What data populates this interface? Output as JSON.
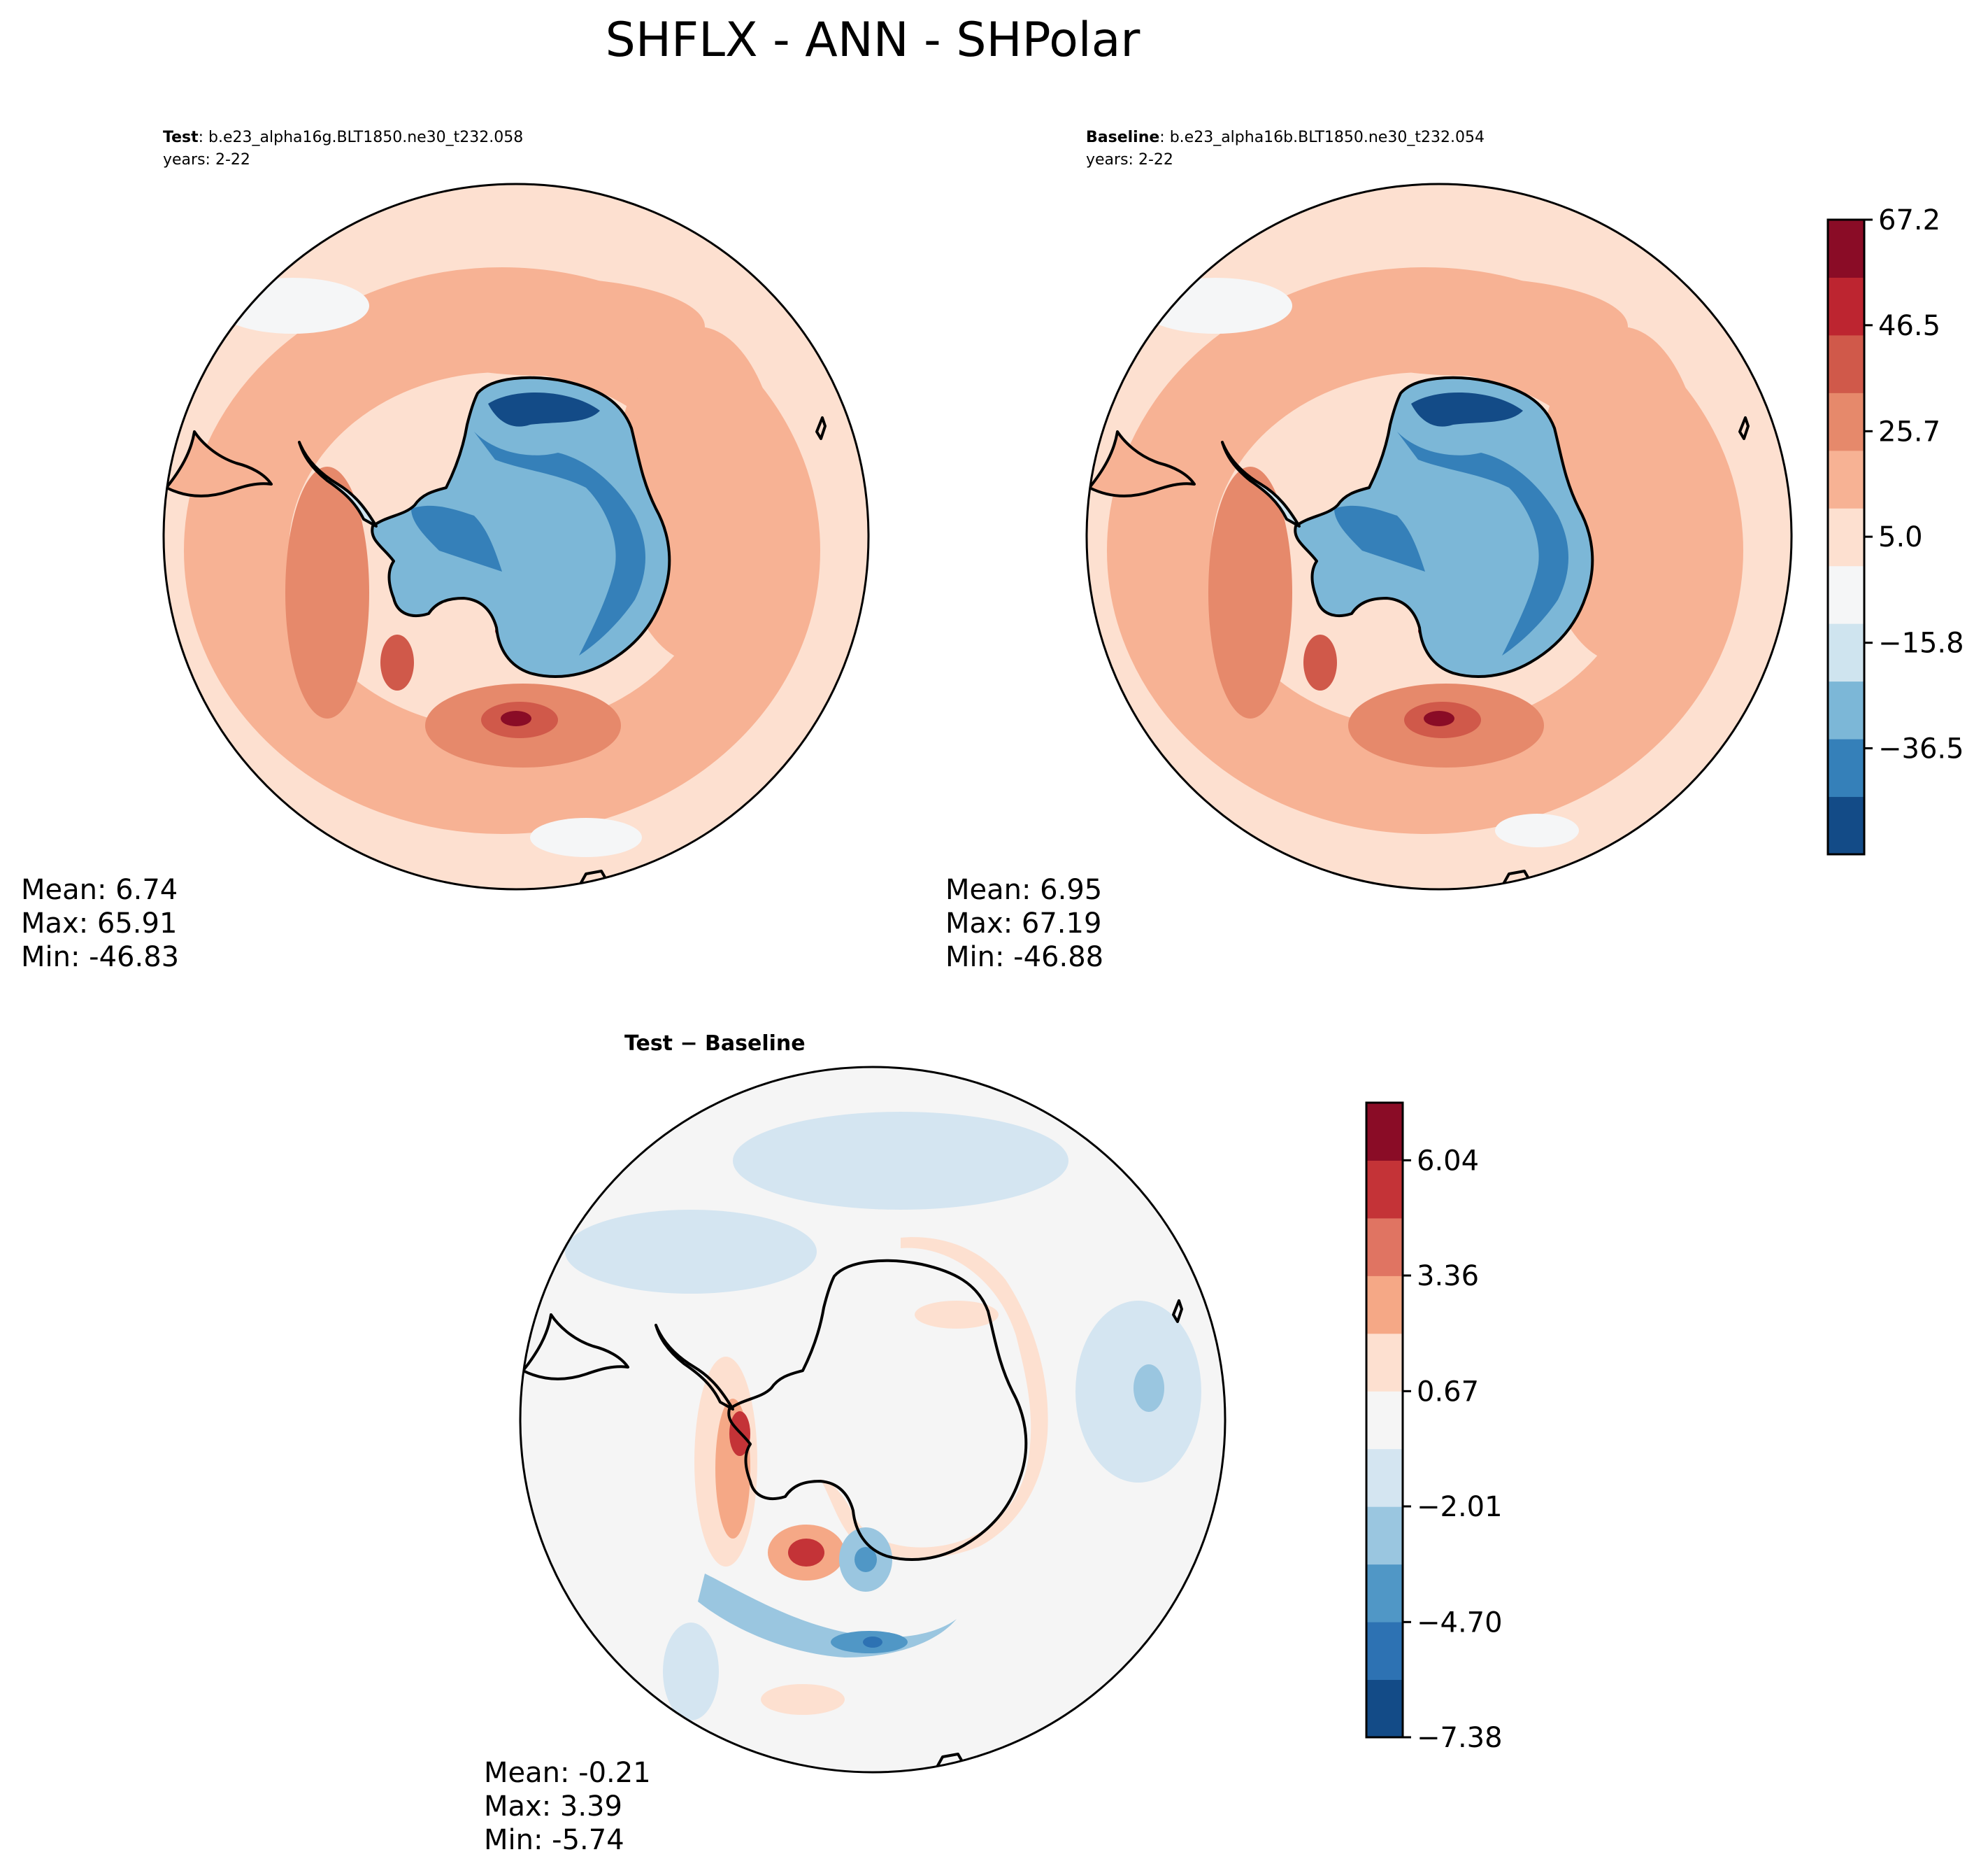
{
  "figure": {
    "title": "SHFLX - ANN - SHPolar"
  },
  "colors": {
    "main_scale": [
      "#134b87",
      "#3580b9",
      "#7cb7d7",
      "#cfe4ef",
      "#f5f6f7",
      "#fde0d0",
      "#f7b294",
      "#e6896b",
      "#d0594a",
      "#bd2530",
      "#8a0c26"
    ],
    "diff_scale": [
      "#134b87",
      "#2d72b3",
      "#5097c6",
      "#9ac6e0",
      "#d4e5f1",
      "#f5f5f5",
      "#fde0d0",
      "#f5a886",
      "#e07462",
      "#c43337",
      "#8a0c26"
    ],
    "land": "#ffffff",
    "coastline": "#000000"
  },
  "panels": [
    {
      "id": "test",
      "label_bold": "Test",
      "label_rest": ": b.e23_alpha16g.BLT1850.ne30_t232.058",
      "years": "years: 2-22",
      "stats": {
        "mean": "Mean:  6.74",
        "max": "Max: 65.91",
        "min": "Min: -46.83"
      }
    },
    {
      "id": "baseline",
      "label_bold": "Baseline",
      "label_rest": ": b.e23_alpha16b.BLT1850.ne30_t232.054",
      "years": "years: 2-22",
      "stats": {
        "mean": "Mean:  6.95",
        "max": "Max: 67.19",
        "min": "Min: -46.88"
      }
    },
    {
      "id": "diff",
      "label_bold": "Test − Baseline",
      "stats": {
        "mean": "Mean: -0.21",
        "max": "Max:  3.39",
        "min": "Min: -5.74"
      }
    }
  ],
  "chart_data": [
    {
      "type": "heatmap",
      "title": "Test",
      "projection": "south-polar-stereographic",
      "variable": "SHFLX",
      "season": "ANN",
      "stats": {
        "mean": 6.74,
        "max": 65.91,
        "min": -46.83
      },
      "contour_levels": [
        -57.3,
        -46.9,
        -36.5,
        -26.2,
        -15.8,
        -5.4,
        5.0,
        15.4,
        25.7,
        36.1,
        46.5,
        56.8,
        67.2
      ]
    },
    {
      "type": "heatmap",
      "title": "Baseline",
      "projection": "south-polar-stereographic",
      "variable": "SHFLX",
      "season": "ANN",
      "stats": {
        "mean": 6.95,
        "max": 67.19,
        "min": -46.88
      },
      "contour_levels": [
        -57.3,
        -46.9,
        -36.5,
        -26.2,
        -15.8,
        -5.4,
        5.0,
        15.4,
        25.7,
        36.1,
        46.5,
        56.8,
        67.2
      ]
    },
    {
      "type": "heatmap",
      "title": "Test − Baseline",
      "projection": "south-polar-stereographic",
      "variable": "SHFLX",
      "season": "ANN",
      "stats": {
        "mean": -0.21,
        "max": 3.39,
        "min": -5.74
      },
      "contour_levels": [
        -7.38,
        -6.04,
        -4.7,
        -3.36,
        -2.01,
        -0.67,
        0.67,
        2.01,
        3.36,
        4.7,
        6.04,
        7.38
      ]
    }
  ],
  "colorbars": {
    "main": {
      "ticks": [
        "67.2",
        "46.5",
        "25.7",
        "5.0",
        "−15.8",
        "−36.5"
      ],
      "tick_values": [
        67.2,
        46.5,
        25.7,
        5.0,
        -15.8,
        -36.5
      ],
      "range": [
        -57.3,
        67.2
      ]
    },
    "diff": {
      "ticks": [
        "6.04",
        "3.36",
        "0.67",
        "−2.01",
        "−4.70",
        "−7.38"
      ],
      "tick_values": [
        6.04,
        3.36,
        0.67,
        -2.01,
        -4.7,
        -7.38
      ],
      "range": [
        -7.38,
        7.38
      ]
    }
  }
}
